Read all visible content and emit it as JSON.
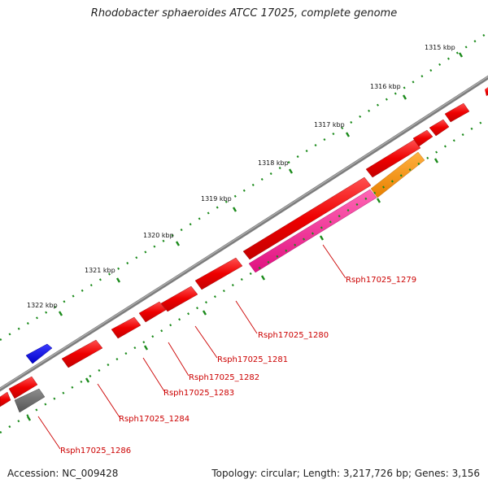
{
  "title": "Rhodobacter sphaeroides ATCC 17025, complete genome",
  "footer": {
    "accession": "Accession: NC_009428",
    "summary": "Topology: circular; Length: 3,217,726 bp; Genes: 3,156"
  },
  "ruler": {
    "unit": "kbp",
    "labels": [
      "1315 kbp",
      "1316 kbp",
      "1317 kbp",
      "1318 kbp",
      "1319 kbp",
      "1320 kbp",
      "1321 kbp",
      "1322 kbp"
    ]
  },
  "gene_labels": [
    "Rsph17025_1279",
    "Rsph17025_1280",
    "Rsph17025_1281",
    "Rsph17025_1282",
    "Rsph17025_1283",
    "Rsph17025_1284",
    "Rsph17025_1286"
  ],
  "colors": {
    "backbone": "#808080",
    "gene_red": "#ff0000",
    "gene_pink": "#ff1493",
    "gene_orange": "#ff8c00",
    "gene_blue": "#0000ff",
    "gene_gray": "#696969",
    "tick_green": "#1a8a1a",
    "label_red": "#cc0000"
  }
}
